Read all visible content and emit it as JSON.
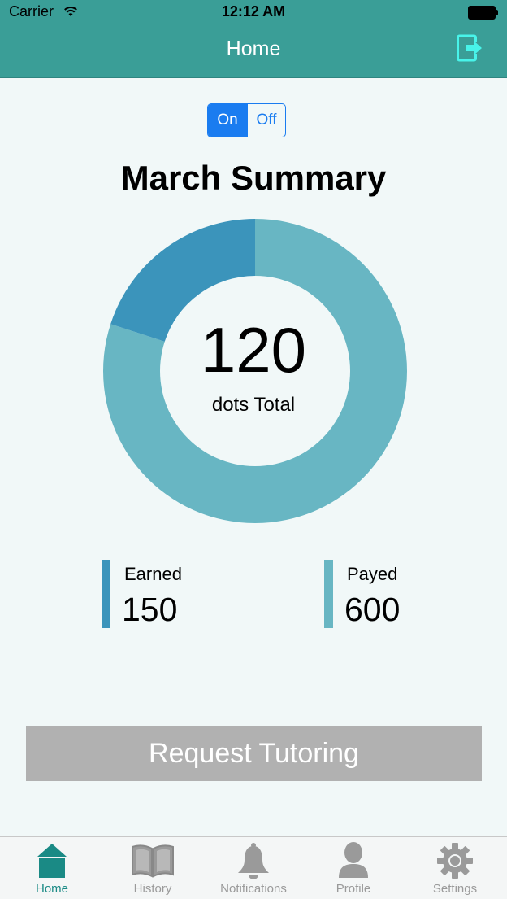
{
  "status_bar": {
    "carrier": "Carrier",
    "time": "12:12 AM"
  },
  "nav": {
    "title": "Home",
    "logout_icon": "logout-icon"
  },
  "toggle": {
    "on_label": "On",
    "off_label": "Off",
    "selected": "On",
    "accent": "#1a7cf0"
  },
  "summary": {
    "title": "March Summary",
    "total_value": "120",
    "total_label": "dots Total"
  },
  "chart_data": {
    "type": "pie",
    "labels": [
      "Earned",
      "Payed"
    ],
    "values": [
      150,
      600
    ],
    "colors": [
      "#3b94bb",
      "#68b6c3"
    ],
    "title": "March Summary"
  },
  "stats": {
    "earned": {
      "label": "Earned",
      "value": "150",
      "color": "#3b94bb"
    },
    "payed": {
      "label": "Payed",
      "value": "600",
      "color": "#68b6c3"
    }
  },
  "request_button": {
    "label": "Request Tutoring"
  },
  "tabs": [
    {
      "label": "Home",
      "icon": "home-icon",
      "active": true
    },
    {
      "label": "History",
      "icon": "book-icon",
      "active": false
    },
    {
      "label": "Notifications",
      "icon": "bell-icon",
      "active": false
    },
    {
      "label": "Profile",
      "icon": "person-icon",
      "active": false
    },
    {
      "label": "Settings",
      "icon": "gear-icon",
      "active": false
    }
  ],
  "colors": {
    "header": "#3a9e97",
    "background": "#f1f8f8",
    "button_gray": "#b1b1b1"
  }
}
